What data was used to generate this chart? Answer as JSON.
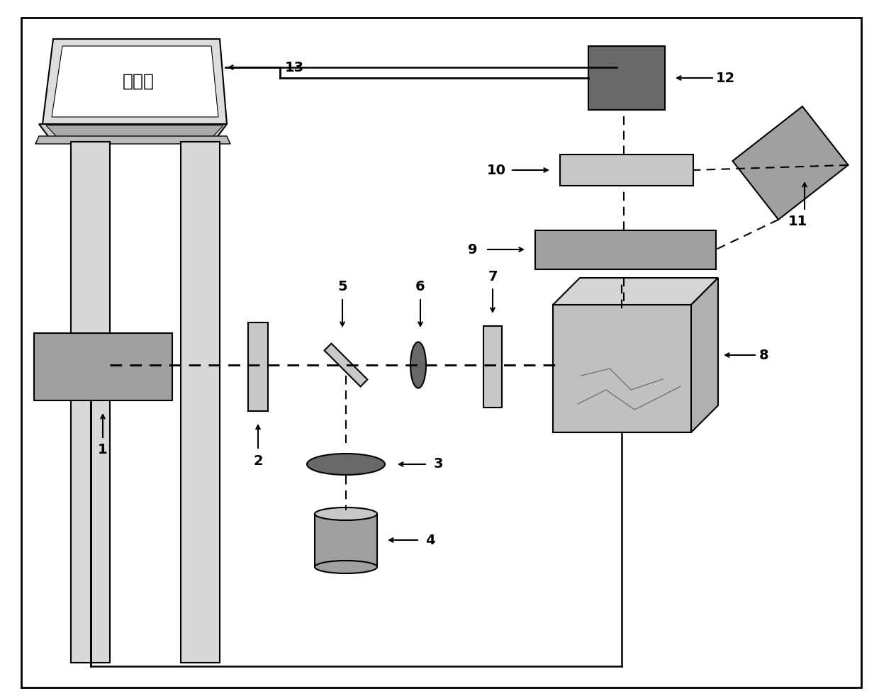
{
  "bg_color": "#ffffff",
  "gray": "#909090",
  "dark_gray": "#686868",
  "light_gray": "#c8c8c8",
  "mid_gray": "#a0a0a0",
  "laptop_label": "计算机",
  "font_size_label": 14,
  "font_size_chinese": 18
}
